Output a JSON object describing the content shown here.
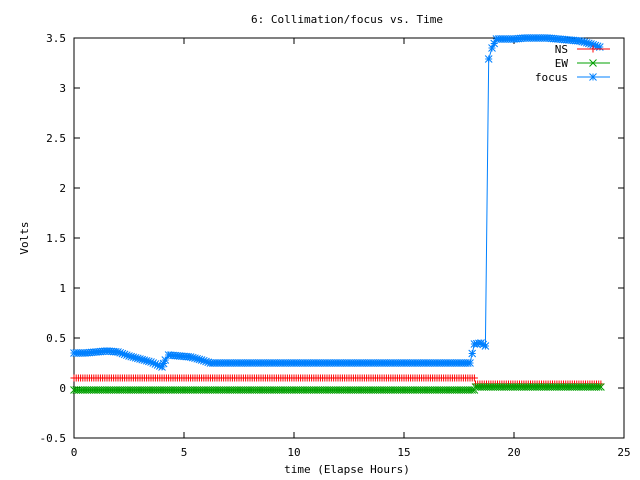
{
  "chart_data": {
    "type": "line",
    "title": "6: Collimation/focus vs. Time",
    "xlabel": "time (Elapse Hours)",
    "ylabel": "Volts",
    "xlim": [
      0,
      25
    ],
    "ylim": [
      -0.5,
      3.5
    ],
    "xticks": [
      "0",
      "5",
      "10",
      "15",
      "20",
      "25"
    ],
    "yticks": [
      "-0.5",
      "0",
      "0.5",
      "1",
      "1.5",
      "2",
      "2.5",
      "3",
      "3.5"
    ],
    "grid": false,
    "legend_position": "top-right",
    "series": [
      {
        "name": "NS",
        "color": "#ff0000",
        "marker": "plus",
        "segments": [
          {
            "x_start": 0,
            "x_end": 18.2,
            "value": 0.1
          },
          {
            "x_start": 18.25,
            "x_end": 24,
            "value": 0.04
          }
        ]
      },
      {
        "name": "EW",
        "color": "#00a000",
        "marker": "cross",
        "segments": [
          {
            "x_start": 0,
            "x_end": 18.2,
            "value": -0.02
          },
          {
            "x_start": 18.25,
            "x_end": 24,
            "value": 0.01
          }
        ]
      },
      {
        "name": "focus",
        "color": "#0080ff",
        "marker": "star",
        "points": [
          [
            0,
            0.35
          ],
          [
            0.5,
            0.35
          ],
          [
            1.0,
            0.36
          ],
          [
            1.5,
            0.37
          ],
          [
            2.0,
            0.36
          ],
          [
            2.5,
            0.32
          ],
          [
            3.0,
            0.29
          ],
          [
            3.5,
            0.26
          ],
          [
            4.0,
            0.21
          ],
          [
            4.15,
            0.28
          ],
          [
            4.3,
            0.33
          ],
          [
            4.8,
            0.32
          ],
          [
            5.3,
            0.31
          ],
          [
            5.8,
            0.28
          ],
          [
            6.2,
            0.25
          ],
          [
            7,
            0.25
          ],
          [
            8,
            0.25
          ],
          [
            9,
            0.25
          ],
          [
            10,
            0.25
          ],
          [
            11,
            0.25
          ],
          [
            12,
            0.25
          ],
          [
            13,
            0.25
          ],
          [
            14,
            0.25
          ],
          [
            15,
            0.25
          ],
          [
            16,
            0.25
          ],
          [
            17,
            0.25
          ],
          [
            18.0,
            0.25
          ],
          [
            18.2,
            0.44
          ],
          [
            18.5,
            0.45
          ],
          [
            18.7,
            0.42
          ],
          [
            18.85,
            3.29
          ],
          [
            19.0,
            3.4
          ],
          [
            19.2,
            3.49
          ],
          [
            19.6,
            3.49
          ],
          [
            20.0,
            3.49
          ],
          [
            20.5,
            3.5
          ],
          [
            21.0,
            3.5
          ],
          [
            21.5,
            3.5
          ],
          [
            22.0,
            3.49
          ],
          [
            22.5,
            3.48
          ],
          [
            23.0,
            3.47
          ],
          [
            23.5,
            3.44
          ],
          [
            23.9,
            3.41
          ]
        ]
      }
    ]
  }
}
